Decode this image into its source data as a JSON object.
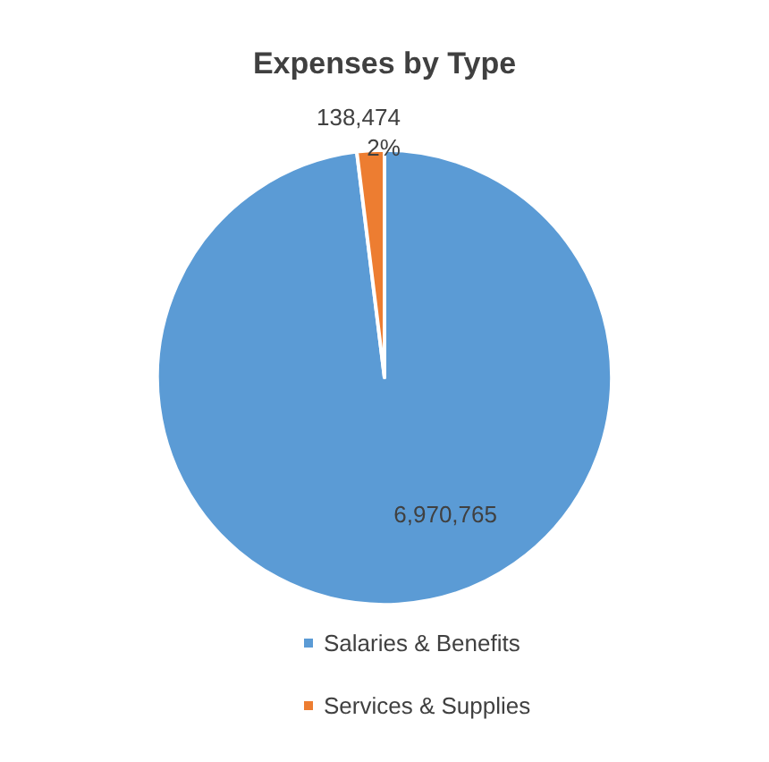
{
  "chart_data": {
    "type": "pie",
    "title": "Expenses by Type",
    "categories": [
      "Salaries & Benefits",
      "Services & Supplies"
    ],
    "values": [
      6970765,
      138474
    ],
    "colors": [
      "#5b9bd5",
      "#ed7d31"
    ],
    "value_labels": [
      "6,970,765",
      "138,474\n2%"
    ],
    "legend": "bottom"
  }
}
